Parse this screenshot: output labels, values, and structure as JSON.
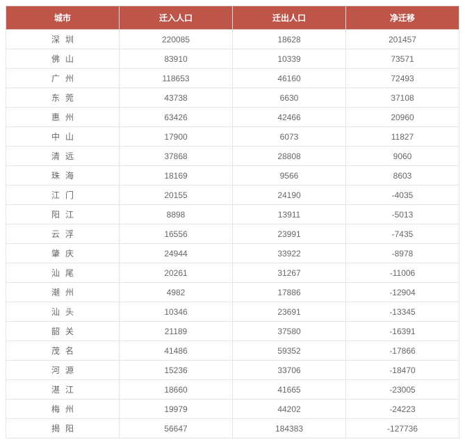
{
  "table": {
    "columns": [
      "城市",
      "迁入人口",
      "迁出人口",
      "净迁移"
    ],
    "rows": [
      {
        "city": "深圳",
        "in": "220085",
        "out": "18628",
        "net": "201457"
      },
      {
        "city": "佛山",
        "in": "83910",
        "out": "10339",
        "net": "73571"
      },
      {
        "city": "广州",
        "in": "118653",
        "out": "46160",
        "net": "72493"
      },
      {
        "city": "东莞",
        "in": "43738",
        "out": "6630",
        "net": "37108"
      },
      {
        "city": "惠州",
        "in": "63426",
        "out": "42466",
        "net": "20960"
      },
      {
        "city": "中山",
        "in": "17900",
        "out": "6073",
        "net": "11827"
      },
      {
        "city": "清远",
        "in": "37868",
        "out": "28808",
        "net": "9060"
      },
      {
        "city": "珠海",
        "in": "18169",
        "out": "9566",
        "net": "8603"
      },
      {
        "city": "江门",
        "in": "20155",
        "out": "24190",
        "net": "-4035"
      },
      {
        "city": "阳江",
        "in": "8898",
        "out": "13911",
        "net": "-5013"
      },
      {
        "city": "云浮",
        "in": "16556",
        "out": "23991",
        "net": "-7435"
      },
      {
        "city": "肇庆",
        "in": "24944",
        "out": "33922",
        "net": "-8978"
      },
      {
        "city": "汕尾",
        "in": "20261",
        "out": "31267",
        "net": "-11006"
      },
      {
        "city": "潮州",
        "in": "4982",
        "out": "17886",
        "net": "-12904"
      },
      {
        "city": "汕头",
        "in": "10346",
        "out": "23691",
        "net": "-13345"
      },
      {
        "city": "韶关",
        "in": "21189",
        "out": "37580",
        "net": "-16391"
      },
      {
        "city": "茂名",
        "in": "41486",
        "out": "59352",
        "net": "-17866"
      },
      {
        "city": "河源",
        "in": "15236",
        "out": "33706",
        "net": "-18470"
      },
      {
        "city": "湛江",
        "in": "18660",
        "out": "41665",
        "net": "-23005"
      },
      {
        "city": "梅州",
        "in": "19979",
        "out": "44202",
        "net": "-24223"
      },
      {
        "city": "揭阳",
        "in": "56647",
        "out": "184383",
        "net": "-127736"
      }
    ],
    "header_bg": "#bf5448",
    "header_color": "#ffffff",
    "cell_color": "#666666",
    "border_color": "#e5e5e5",
    "font_size": 12
  }
}
